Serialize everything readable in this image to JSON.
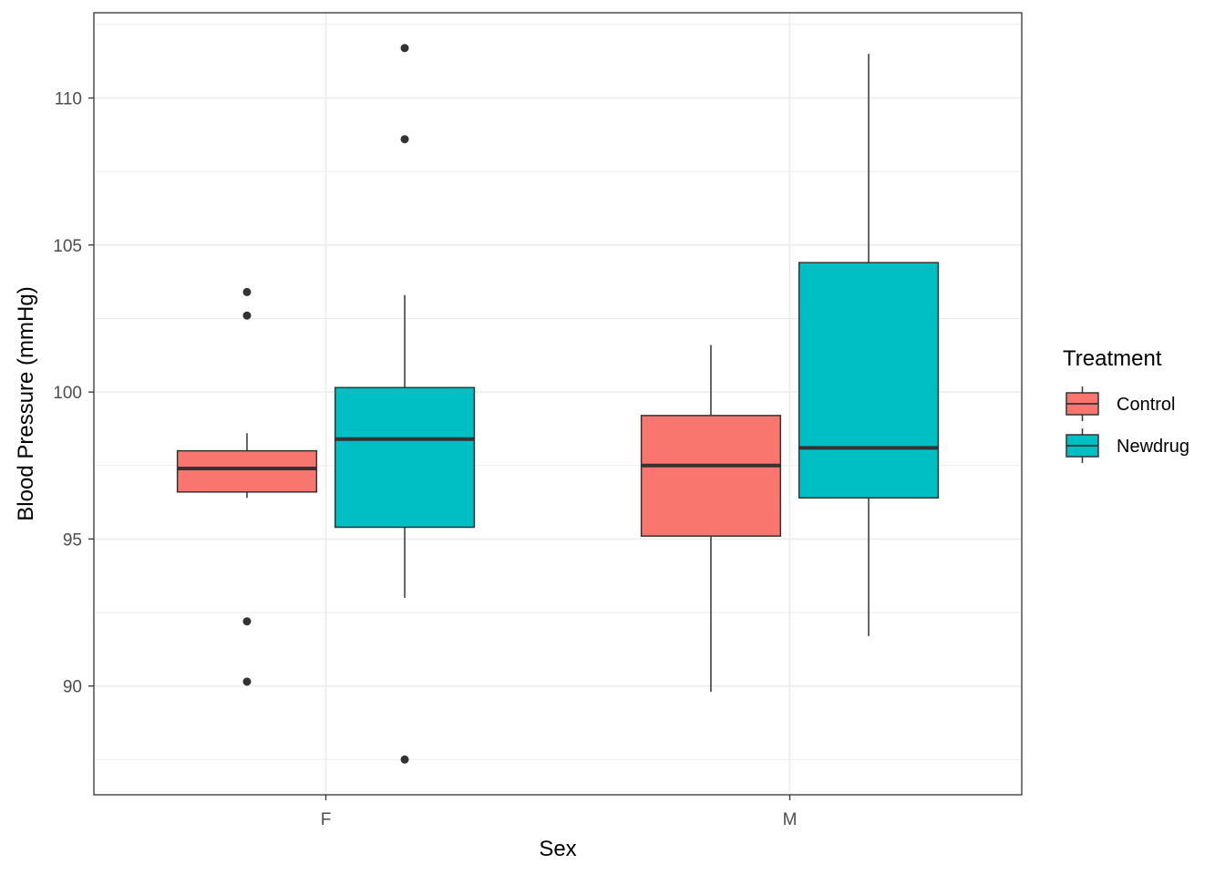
{
  "chart_data": {
    "type": "boxplot",
    "xlabel": "Sex",
    "ylabel": "Blood Pressure (mmHg)",
    "ylim": [
      86.3,
      112.9
    ],
    "yticks": [
      90,
      95,
      100,
      105,
      110
    ],
    "y_minor_ticks": [
      87.5,
      92.5,
      97.5,
      102.5,
      107.5,
      112.5
    ],
    "categories": [
      "F",
      "M"
    ],
    "grid": true,
    "legend": {
      "title": "Treatment",
      "position": "right",
      "entries": [
        {
          "label": "Control",
          "color": "#F8766D"
        },
        {
          "label": "Newdrug",
          "color": "#00BFC4"
        }
      ]
    },
    "series": [
      {
        "name": "Control",
        "color": "#F8766D",
        "boxes": [
          {
            "category": "F",
            "whisker_low": 96.4,
            "q1": 96.6,
            "median": 97.4,
            "q3": 98.0,
            "whisker_high": 98.6,
            "outliers": [
              103.4,
              102.6,
              92.2,
              90.15
            ]
          },
          {
            "category": "M",
            "whisker_low": 89.8,
            "q1": 95.1,
            "median": 97.5,
            "q3": 99.2,
            "whisker_high": 101.6,
            "outliers": []
          }
        ]
      },
      {
        "name": "Newdrug",
        "color": "#00BFC4",
        "boxes": [
          {
            "category": "F",
            "whisker_low": 93.0,
            "q1": 95.4,
            "median": 98.4,
            "q3": 100.15,
            "whisker_high": 103.3,
            "outliers": [
              111.7,
              108.6,
              87.5
            ]
          },
          {
            "category": "M",
            "whisker_low": 91.7,
            "q1": 96.4,
            "median": 98.1,
            "q3": 104.4,
            "whisker_high": 111.5,
            "outliers": []
          }
        ]
      }
    ]
  }
}
